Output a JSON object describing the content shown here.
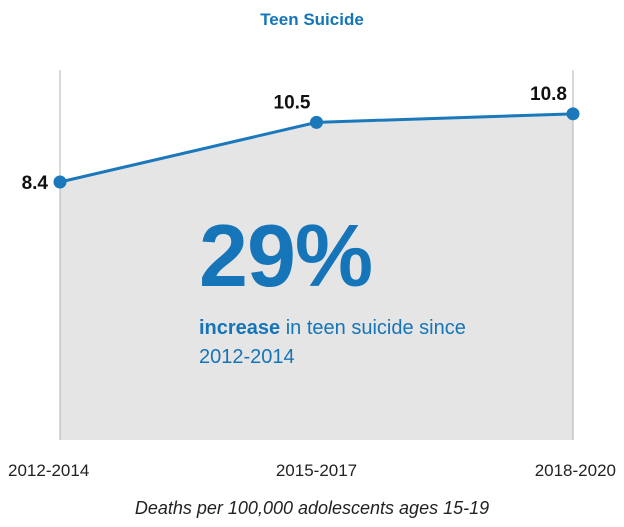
{
  "chart_data": {
    "type": "area",
    "title": "Teen Suicide",
    "categories": [
      "2012-2014",
      "2015-2017",
      "2018-2020"
    ],
    "series": [
      {
        "values": [
          8.4,
          10.5,
          10.8
        ],
        "data_labels": [
          "8.4",
          "10.5",
          "10.8"
        ]
      }
    ],
    "xlabel": "Deaths per 100,000 adolescents ages 15-19",
    "ylabel": "",
    "grid": false,
    "colors": {
      "line": "#1a78bb",
      "fill": "#e5e5e5",
      "text_accent": "#1575b8"
    }
  },
  "annotation": {
    "big_number": "29%",
    "caption_bold": "increase",
    "caption_rest": " in teen suicide since 2012-2014"
  }
}
